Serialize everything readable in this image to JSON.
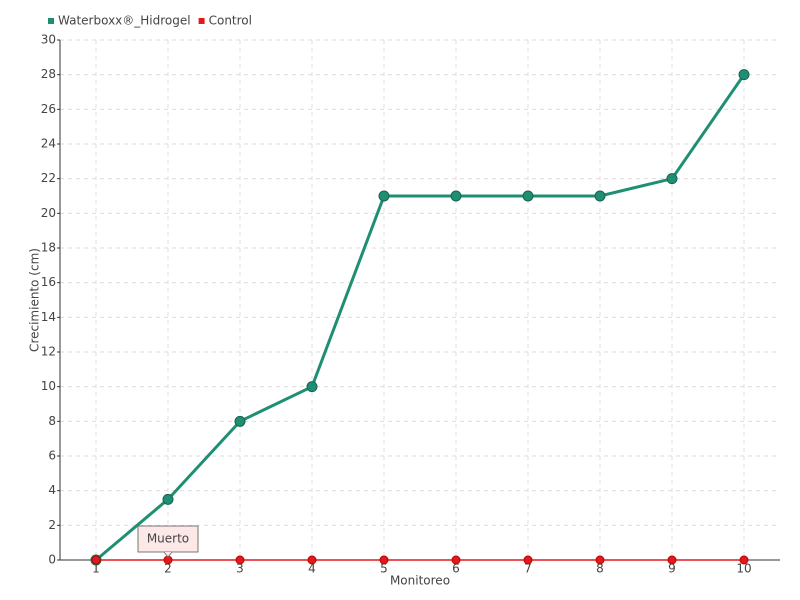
{
  "chart_data": {
    "type": "line",
    "x_label": "Monitoreo",
    "y_label": "Crecimiento (cm)",
    "categories": [
      "1",
      "2",
      "3",
      "4",
      "5",
      "6",
      "7",
      "8",
      "9",
      "10"
    ],
    "series": [
      {
        "name": "Waterboxx®_Hidrogel",
        "color": "#1f8f73",
        "values": [
          0,
          3.5,
          8,
          10,
          21,
          21,
          21,
          21,
          22,
          28
        ]
      },
      {
        "name": "Control",
        "color": "#e31a1c",
        "values": [
          0,
          0,
          0,
          0,
          0,
          0,
          0,
          0,
          0,
          0
        ]
      }
    ],
    "annotations": [
      {
        "text": "Muerto",
        "x": "2"
      }
    ],
    "ylim": [
      0,
      30
    ],
    "yticks": [
      0,
      2,
      4,
      6,
      8,
      10,
      12,
      14,
      16,
      18,
      20,
      22,
      24,
      26,
      28,
      30
    ],
    "grid": true,
    "legend": "top-left"
  }
}
